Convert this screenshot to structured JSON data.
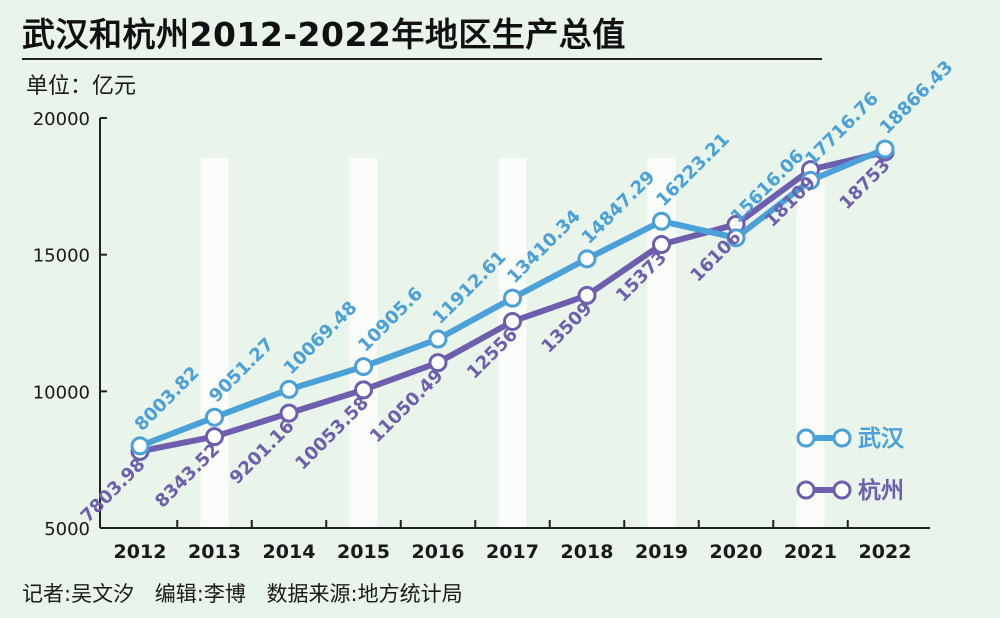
{
  "title": "武汉和杭州2012-2022年地区生产总值",
  "unit": "单位：亿元",
  "footer": {
    "reporter": "记者:吴文汐",
    "editor": "编辑:李博",
    "source": "数据来源:地方统计局"
  },
  "colors": {
    "wuhan": "#4aa0d8",
    "hangzhou": "#6d5fae",
    "background": "#e9f4ea"
  },
  "chart_data": {
    "type": "line",
    "title": "武汉和杭州2012-2022年地区生产总值",
    "ylabel": "单位：亿元",
    "xlabel": "",
    "ylim": [
      5000,
      20000
    ],
    "yticks": [
      5000,
      10000,
      15000,
      20000
    ],
    "categories": [
      "2012",
      "2013",
      "2014",
      "2015",
      "2016",
      "2017",
      "2018",
      "2019",
      "2020",
      "2021",
      "2022"
    ],
    "legend_position": "bottom-right",
    "grid": false,
    "series": [
      {
        "name": "武汉",
        "values": [
          8003.82,
          9051.27,
          10069.48,
          10905.6,
          11912.61,
          13410.34,
          14847.29,
          16223.21,
          15616.06,
          17716.76,
          18866.43
        ],
        "labels": [
          "8003.82",
          "9051.27",
          "10069.48",
          "10905.6",
          "11912.61",
          "13410.34",
          "14847.29",
          "16223.21",
          "15616.06",
          "17716.76",
          "18866.43"
        ]
      },
      {
        "name": "杭州",
        "values": [
          7803.98,
          8343.52,
          9201.16,
          10053.58,
          11050.49,
          12556,
          13509,
          15373,
          16106,
          18109,
          18753
        ],
        "labels": [
          "7803.98",
          "8343.52",
          "9201.16",
          "10053.58",
          "11050.49",
          "12556",
          "13509",
          "15373",
          "16106",
          "18109",
          "18753"
        ]
      }
    ]
  }
}
